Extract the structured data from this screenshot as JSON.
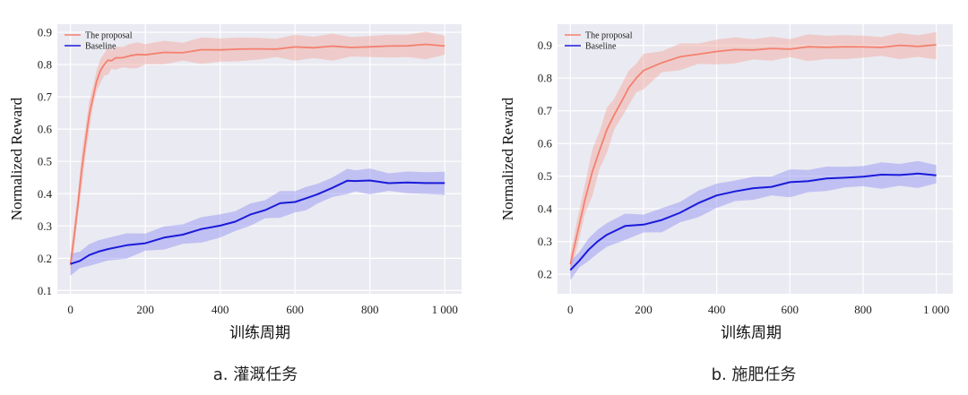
{
  "chart_data": [
    {
      "type": "line",
      "caption": "a. 灌溉任务",
      "xlabel": "训练周期",
      "ylabel": "Normalized Reward",
      "xlim": [
        -35,
        1045
      ],
      "ylim": [
        0.09,
        0.925
      ],
      "xticks": [
        0,
        200,
        400,
        600,
        800,
        1000
      ],
      "xtick_labels": [
        "0",
        "200",
        "400",
        "600",
        "800",
        "1 000"
      ],
      "yticks": [
        0.1,
        0.2,
        0.3,
        0.4,
        0.5,
        0.6,
        0.7,
        0.8,
        0.9
      ],
      "ytick_labels": [
        "0.1",
        "0.2",
        "0.3",
        "0.4",
        "0.5",
        "0.6",
        "0.7",
        "0.8",
        "0.9"
      ],
      "legend_position": "top-left",
      "series": [
        {
          "name": "The proposal",
          "color": "#f4806f",
          "band_color": "#f4a69a",
          "x": [
            0,
            10,
            20,
            30,
            40,
            50,
            60,
            70,
            80,
            90,
            100,
            110,
            120,
            140,
            160,
            180,
            200,
            250,
            300,
            350,
            400,
            450,
            500,
            550,
            600,
            650,
            700,
            750,
            800,
            850,
            900,
            950,
            1000
          ],
          "y": [
            0.18,
            0.27,
            0.37,
            0.47,
            0.56,
            0.64,
            0.7,
            0.75,
            0.78,
            0.8,
            0.81,
            0.815,
            0.82,
            0.823,
            0.826,
            0.829,
            0.832,
            0.837,
            0.84,
            0.843,
            0.845,
            0.847,
            0.849,
            0.851,
            0.852,
            0.853,
            0.854,
            0.855,
            0.856,
            0.857,
            0.858,
            0.859,
            0.86
          ],
          "band": [
            0.035,
            0.04,
            0.045,
            0.045,
            0.045,
            0.04,
            0.035,
            0.035,
            0.035,
            0.035,
            0.035,
            0.035,
            0.035,
            0.035,
            0.035,
            0.035,
            0.035,
            0.035,
            0.035,
            0.035,
            0.035,
            0.035,
            0.035,
            0.035,
            0.035,
            0.035,
            0.035,
            0.035,
            0.035,
            0.035,
            0.035,
            0.035,
            0.035
          ]
        },
        {
          "name": "Baseline",
          "color": "#1a1adb",
          "band_color": "#8f8ff2",
          "x": [
            0,
            25,
            50,
            75,
            100,
            150,
            200,
            250,
            300,
            350,
            400,
            440,
            480,
            520,
            560,
            600,
            630,
            660,
            700,
            740,
            760,
            800,
            850,
            900,
            950,
            1000
          ],
          "y": [
            0.18,
            0.195,
            0.21,
            0.22,
            0.228,
            0.238,
            0.25,
            0.263,
            0.275,
            0.288,
            0.3,
            0.315,
            0.335,
            0.352,
            0.367,
            0.375,
            0.385,
            0.4,
            0.42,
            0.438,
            0.44,
            0.438,
            0.436,
            0.435,
            0.433,
            0.432
          ],
          "band": [
            0.03,
            0.032,
            0.034,
            0.034,
            0.034,
            0.034,
            0.034,
            0.034,
            0.034,
            0.034,
            0.034,
            0.034,
            0.034,
            0.034,
            0.034,
            0.034,
            0.034,
            0.034,
            0.034,
            0.034,
            0.034,
            0.034,
            0.034,
            0.034,
            0.034,
            0.034
          ]
        }
      ]
    },
    {
      "type": "line",
      "caption": "b. 施肥任务",
      "xlabel": "训练周期",
      "ylabel": "Normalized Reward",
      "xlim": [
        -35,
        1045
      ],
      "ylim": [
        0.14,
        0.965
      ],
      "xticks": [
        0,
        200,
        400,
        600,
        800,
        1000
      ],
      "xtick_labels": [
        "0",
        "200",
        "400",
        "600",
        "800",
        "1 000"
      ],
      "yticks": [
        0.2,
        0.3,
        0.4,
        0.5,
        0.6,
        0.7,
        0.8,
        0.9
      ],
      "ytick_labels": [
        "0.2",
        "0.3",
        "0.4",
        "0.5",
        "0.6",
        "0.7",
        "0.8",
        "0.9"
      ],
      "legend_position": "top-left",
      "series": [
        {
          "name": "The proposal",
          "color": "#f4806f",
          "band_color": "#f4a69a",
          "x": [
            0,
            20,
            40,
            60,
            80,
            100,
            120,
            140,
            160,
            180,
            200,
            250,
            300,
            350,
            400,
            450,
            500,
            550,
            600,
            650,
            700,
            750,
            800,
            850,
            900,
            950,
            1000
          ],
          "y": [
            0.23,
            0.33,
            0.43,
            0.51,
            0.58,
            0.64,
            0.69,
            0.73,
            0.77,
            0.8,
            0.82,
            0.85,
            0.865,
            0.875,
            0.88,
            0.885,
            0.888,
            0.89,
            0.892,
            0.893,
            0.894,
            0.895,
            0.896,
            0.897,
            0.898,
            0.898,
            0.899
          ],
          "band": [
            0.03,
            0.045,
            0.055,
            0.06,
            0.06,
            0.06,
            0.055,
            0.055,
            0.05,
            0.045,
            0.045,
            0.04,
            0.04,
            0.035,
            0.035,
            0.035,
            0.035,
            0.035,
            0.035,
            0.035,
            0.035,
            0.035,
            0.035,
            0.035,
            0.035,
            0.035,
            0.035
          ]
        },
        {
          "name": "Baseline",
          "color": "#1a1adb",
          "band_color": "#8f8ff2",
          "x": [
            0,
            25,
            50,
            75,
            100,
            150,
            200,
            250,
            300,
            350,
            400,
            450,
            500,
            550,
            600,
            650,
            700,
            750,
            800,
            850,
            900,
            950,
            1000
          ],
          "y": [
            0.21,
            0.245,
            0.275,
            0.3,
            0.32,
            0.345,
            0.355,
            0.365,
            0.39,
            0.415,
            0.44,
            0.455,
            0.463,
            0.47,
            0.478,
            0.485,
            0.492,
            0.497,
            0.5,
            0.502,
            0.504,
            0.505,
            0.506
          ],
          "band": [
            0.025,
            0.03,
            0.035,
            0.035,
            0.035,
            0.035,
            0.035,
            0.035,
            0.035,
            0.035,
            0.035,
            0.035,
            0.035,
            0.035,
            0.035,
            0.035,
            0.035,
            0.035,
            0.035,
            0.035,
            0.035,
            0.035,
            0.035
          ]
        }
      ]
    }
  ]
}
